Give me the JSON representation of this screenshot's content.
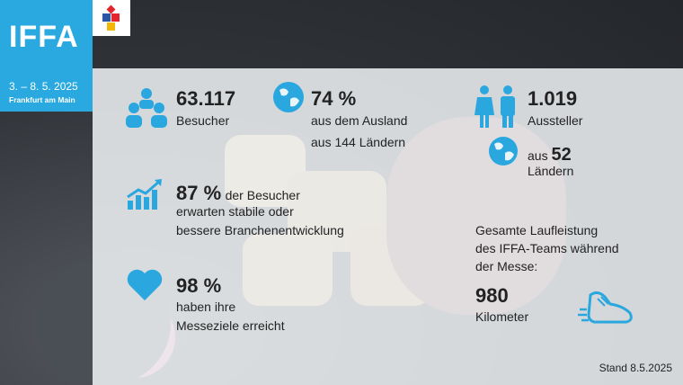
{
  "header": {
    "brand": "IFFA",
    "dates": "3. – 8. 5. 2025",
    "city": "Frankfurt am Main"
  },
  "stats": {
    "visitors_value": "63.117",
    "visitors_label": "Besucher",
    "abroad_value": "74 %",
    "abroad_label": "aus dem Ausland",
    "countries_label": "aus 144 Ländern",
    "exhibitors_value": "1.019",
    "exhibitors_label": "Aussteller",
    "exhibitor_countries_prefix": "aus",
    "exhibitor_countries_value": "52",
    "exhibitor_countries_label": "Ländern",
    "outlook_value": "87 %",
    "outlook_suffix": "der Besucher",
    "outlook_line2": "erwarten stabile oder",
    "outlook_line3": "bessere Branchenentwicklung",
    "goals_value": "98 %",
    "goals_line1": "haben ihre",
    "goals_line2": "Messeziele erreicht",
    "distance_line1": "Gesamte Laufleistung",
    "distance_line2": "des IFFA-Teams während",
    "distance_line3": "der Messe:",
    "distance_value": "980",
    "distance_unit": "Kilometer"
  },
  "footer": {
    "stand": "Stand 8.5.2025"
  },
  "colors": {
    "accent": "#2aa7df",
    "panel": "#f0f3f6",
    "text": "#222222"
  }
}
